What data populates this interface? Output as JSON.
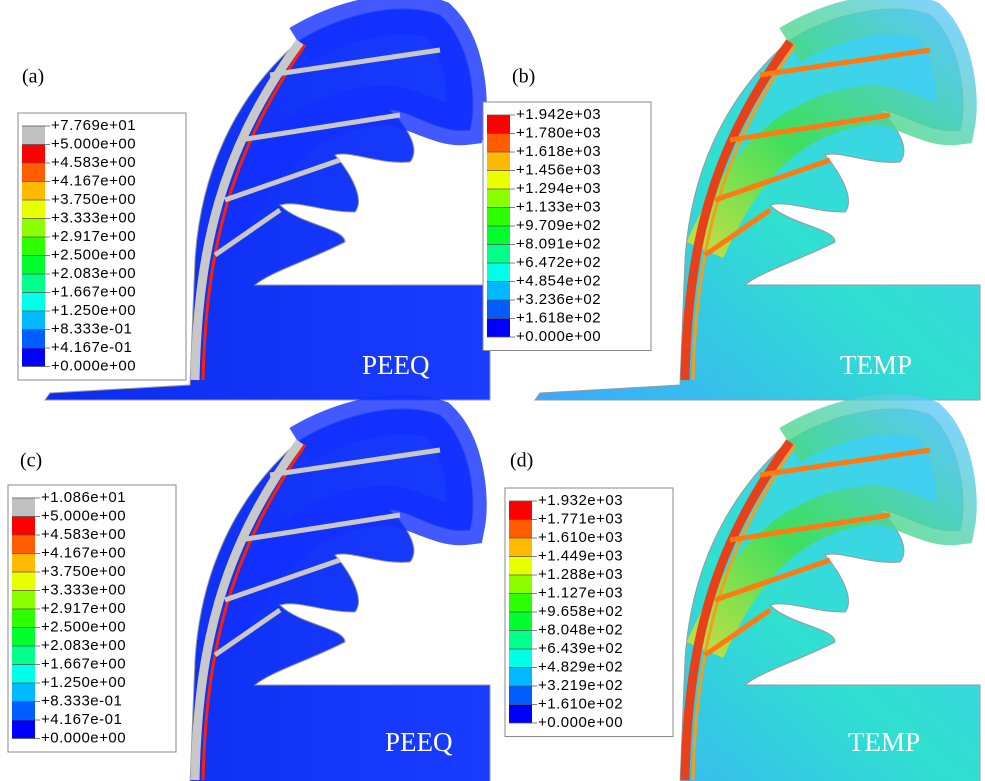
{
  "panels": [
    {
      "label": "(a)",
      "field": "PEEQ",
      "legend": [
        "+7.769e+01",
        "+5.000e+00",
        "+4.583e+00",
        "+4.167e+00",
        "+3.750e+00",
        "+3.333e+00",
        "+2.917e+00",
        "+2.500e+00",
        "+2.083e+00",
        "+1.667e+00",
        "+1.250e+00",
        "+8.333e-01",
        "+4.167e-01",
        "+0.000e+00"
      ]
    },
    {
      "label": "(b)",
      "field": "TEMP",
      "legend": [
        "+1.942e+03",
        "+1.780e+03",
        "+1.618e+03",
        "+1.456e+03",
        "+1.294e+03",
        "+1.133e+03",
        "+9.709e+02",
        "+8.091e+02",
        "+6.472e+02",
        "+4.854e+02",
        "+3.236e+02",
        "+1.618e+02",
        "+0.000e+00"
      ]
    },
    {
      "label": "(c)",
      "field": "PEEQ",
      "legend": [
        "+1.086e+01",
        "+5.000e+00",
        "+4.583e+00",
        "+4.167e+00",
        "+3.750e+00",
        "+3.333e+00",
        "+2.917e+00",
        "+2.500e+00",
        "+2.083e+00",
        "+1.667e+00",
        "+1.250e+00",
        "+8.333e-01",
        "+4.167e-01",
        "+0.000e+00"
      ]
    },
    {
      "label": "(d)",
      "field": "TEMP",
      "legend": [
        "+1.932e+03",
        "+1.771e+03",
        "+1.610e+03",
        "+1.449e+03",
        "+1.288e+03",
        "+1.127e+03",
        "+9.658e+02",
        "+8.048e+02",
        "+6.439e+02",
        "+4.829e+02",
        "+3.219e+02",
        "+1.610e+02",
        "+0.000e+00"
      ]
    }
  ]
}
